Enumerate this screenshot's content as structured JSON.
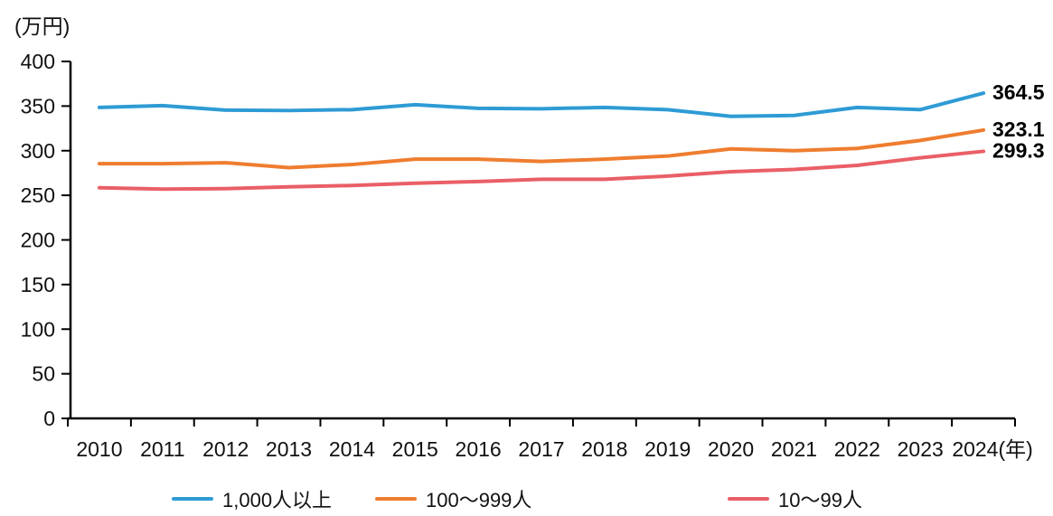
{
  "chart_data": {
    "type": "line",
    "title": "",
    "unit_label": "(万円)",
    "x_suffix": "(年)",
    "categories": [
      "2010",
      "2011",
      "2012",
      "2013",
      "2014",
      "2015",
      "2016",
      "2017",
      "2018",
      "2019",
      "2020",
      "2021",
      "2022",
      "2023",
      "2024"
    ],
    "series": [
      {
        "name": "1,000人以上",
        "color": "#2E9BD5",
        "values": [
          348.5,
          350.5,
          345.5,
          345.0,
          346.0,
          351.5,
          347.5,
          347.0,
          348.5,
          346.0,
          338.5,
          339.5,
          348.5,
          346.0,
          364.5
        ],
        "end_label": "364.5"
      },
      {
        "name": "100〜999人",
        "color": "#EF7D2F",
        "values": [
          285.5,
          285.5,
          286.5,
          281.0,
          284.5,
          290.5,
          290.5,
          288.0,
          290.5,
          294.0,
          302.0,
          300.0,
          302.5,
          311.5,
          323.1
        ],
        "end_label": "323.1"
      },
      {
        "name": "10〜99人",
        "color": "#EA5F66",
        "values": [
          258.5,
          257.0,
          257.5,
          259.5,
          261.0,
          263.5,
          265.5,
          268.0,
          268.0,
          271.5,
          276.5,
          279.0,
          283.5,
          292.0,
          299.3
        ],
        "end_label": "299.3"
      }
    ],
    "ylim": [
      0,
      400
    ],
    "yticks": [
      0,
      50,
      100,
      150,
      200,
      250,
      300,
      350,
      400
    ],
    "grid": "off",
    "legend_position": "bottom",
    "axis_color": "#000000",
    "label_color": "#111111"
  }
}
